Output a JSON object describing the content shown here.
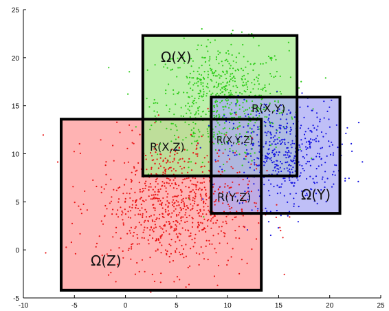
{
  "chart_data": {
    "type": "scatter",
    "title": "",
    "xlabel": "",
    "ylabel": "",
    "xlim": [
      -10,
      25
    ],
    "ylim": [
      -5,
      25
    ],
    "xticks": [
      -10,
      -5,
      0,
      5,
      10,
      15,
      20,
      25
    ],
    "yticks": [
      -5,
      0,
      5,
      10,
      15,
      20,
      25
    ],
    "grid": false,
    "regions": [
      {
        "name": "Ω(Z)",
        "x0": -6.3,
        "x1": 13.3,
        "y0": -4.2,
        "y1": 13.6,
        "color": "#ff9a9a"
      },
      {
        "name": "Ω(X)",
        "x0": 1.7,
        "x1": 16.8,
        "y0": 7.7,
        "y1": 22.3,
        "color": "#a8ec92"
      },
      {
        "name": "Ω(Y)",
        "x0": 8.4,
        "x1": 21.0,
        "y0": 3.8,
        "y1": 15.9,
        "color": "#a9a9f4"
      }
    ],
    "intersections": [
      {
        "name": "R(X,Y)",
        "x0": 8.4,
        "x1": 16.8,
        "y0": 7.7,
        "y1": 15.9
      },
      {
        "name": "R(X,Z)",
        "x0": 1.7,
        "x1": 13.3,
        "y0": 7.7,
        "y1": 13.6
      },
      {
        "name": "R(Y,Z)",
        "x0": 8.4,
        "x1": 13.3,
        "y0": 3.8,
        "y1": 7.7
      },
      {
        "name": "R(X,Y,Z)",
        "x0": 8.4,
        "x1": 13.3,
        "y0": 7.7,
        "y1": 13.6
      }
    ],
    "clusters": [
      {
        "name": "X",
        "color": "#2ecc1a",
        "mean": [
          9.5,
          15.5
        ],
        "sd": [
          3.2,
          3.0
        ],
        "n": 650
      },
      {
        "name": "Y",
        "color": "#1515e0",
        "mean": [
          15.5,
          10.0
        ],
        "sd": [
          2.8,
          2.7
        ],
        "n": 520
      },
      {
        "name": "Z",
        "color": "#e81414",
        "mean": [
          4.8,
          4.8
        ],
        "sd": [
          3.8,
          3.4
        ],
        "n": 850
      }
    ]
  }
}
